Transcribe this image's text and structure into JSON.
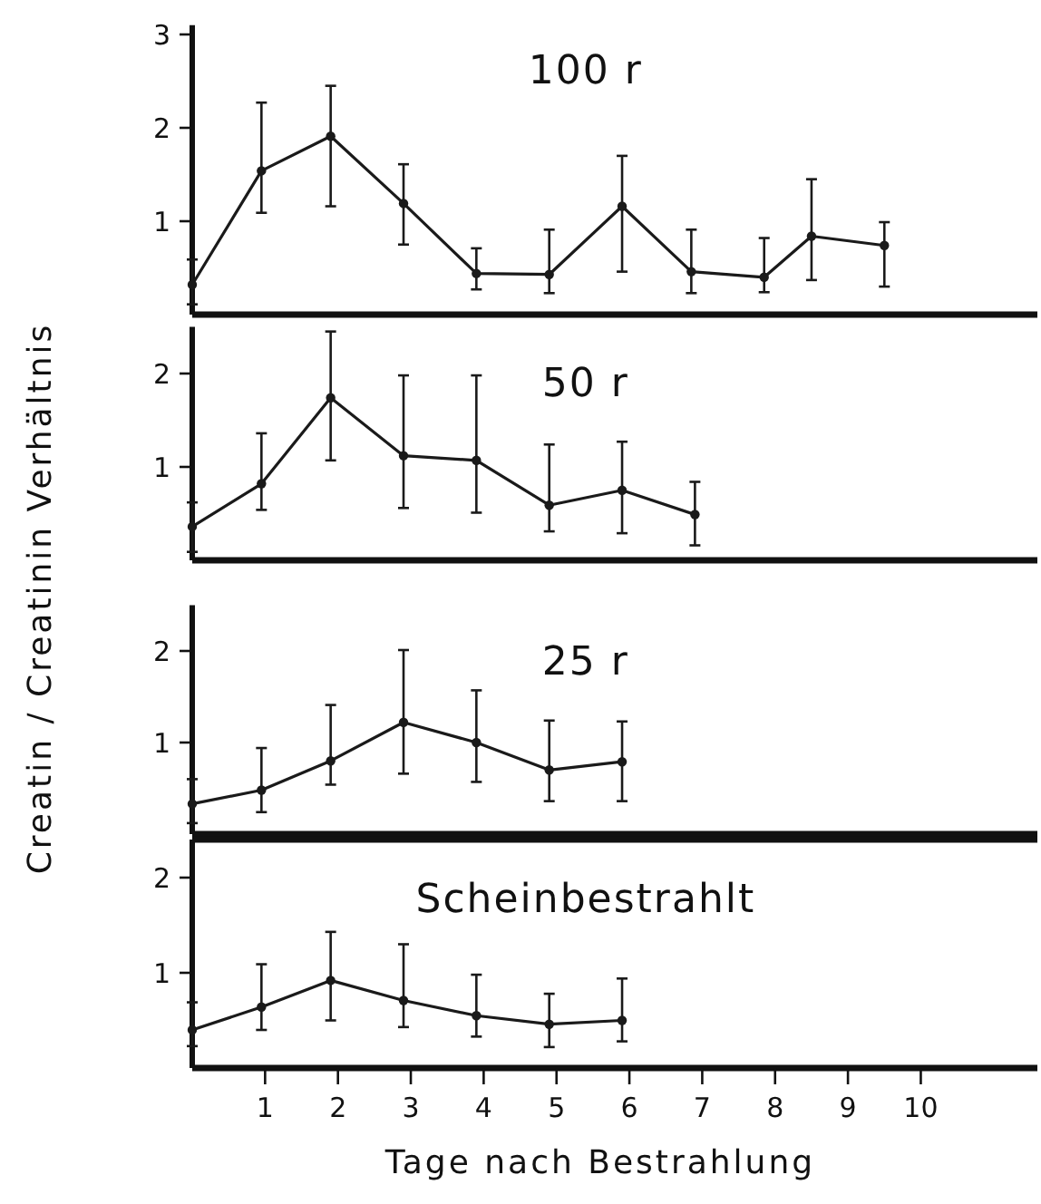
{
  "chart_data": [
    {
      "type": "line",
      "title": "100 r",
      "ylabel": "Creatin / Creatinin Verhältnis",
      "x": [
        0,
        0.95,
        1.9,
        2.9,
        3.9,
        4.9,
        5.9,
        6.85,
        7.85,
        8.5,
        9.5
      ],
      "xlim": [
        0,
        11.6
      ],
      "ylim": [
        0,
        3.1
      ],
      "yticks": [
        1,
        2,
        3
      ],
      "tick_labels": "y",
      "marker": "circle",
      "series": [
        {
          "color": "#1a1a1a",
          "values": [
            0.32,
            1.54,
            1.91,
            1.19,
            0.44,
            0.43,
            1.16,
            0.46,
            0.4,
            0.84,
            0.74
          ],
          "errors": [
            [
              0.11,
              0.59
            ],
            [
              1.09,
              2.27
            ],
            [
              1.16,
              2.45
            ],
            [
              0.75,
              1.61
            ],
            [
              0.27,
              0.71
            ],
            [
              0.23,
              0.91
            ],
            [
              0.46,
              1.7
            ],
            [
              0.23,
              0.91
            ],
            [
              0.24,
              0.82
            ],
            [
              0.37,
              1.45
            ],
            [
              0.3,
              0.99
            ]
          ]
        }
      ]
    },
    {
      "type": "line",
      "title": "50 r",
      "x": [
        0,
        0.95,
        1.9,
        2.9,
        3.9,
        4.9,
        5.9,
        6.9
      ],
      "xlim": [
        0,
        11.6
      ],
      "ylim": [
        0,
        2.5
      ],
      "yticks": [
        1,
        2
      ],
      "tick_labels": "y",
      "marker": "circle",
      "series": [
        {
          "color": "#1a1a1a",
          "values": [
            0.36,
            0.82,
            1.74,
            1.12,
            1.07,
            0.59,
            0.75,
            0.49
          ],
          "errors": [
            [
              0.09,
              0.62
            ],
            [
              0.54,
              1.36
            ],
            [
              1.07,
              2.45
            ],
            [
              0.56,
              1.98
            ],
            [
              0.51,
              1.98
            ],
            [
              0.31,
              1.24
            ],
            [
              0.29,
              1.27
            ],
            [
              0.16,
              0.84
            ]
          ]
        }
      ]
    },
    {
      "type": "line",
      "title": "25 r",
      "x": [
        0,
        0.95,
        1.9,
        2.9,
        3.9,
        4.9,
        5.9
      ],
      "xlim": [
        0,
        11.6
      ],
      "ylim": [
        0,
        2.5
      ],
      "yticks": [
        1,
        2
      ],
      "tick_labels": "y",
      "marker": "circle",
      "series": [
        {
          "color": "#1a1a1a",
          "values": [
            0.33,
            0.48,
            0.8,
            1.22,
            1.0,
            0.7,
            0.79
          ],
          "errors": [
            [
              0.12,
              0.6
            ],
            [
              0.24,
              0.94
            ],
            [
              0.54,
              1.41
            ],
            [
              0.66,
              2.01
            ],
            [
              0.57,
              1.57
            ],
            [
              0.36,
              1.24
            ],
            [
              0.36,
              1.23
            ]
          ]
        }
      ]
    },
    {
      "type": "line",
      "title": "Scheinbestrahlt",
      "xlabel": "Tage nach Bestrahlung",
      "x": [
        0,
        0.95,
        1.9,
        2.9,
        3.9,
        4.9,
        5.9
      ],
      "xlim": [
        0,
        11.6
      ],
      "xticks": [
        1,
        2,
        3,
        4,
        5,
        6,
        7,
        8,
        9,
        10
      ],
      "ylim": [
        0,
        2.4
      ],
      "yticks": [
        1,
        2
      ],
      "marker": "circle",
      "series": [
        {
          "color": "#1a1a1a",
          "values": [
            0.4,
            0.64,
            0.92,
            0.71,
            0.55,
            0.46,
            0.5
          ],
          "errors": [
            [
              0.23,
              0.69
            ],
            [
              0.4,
              1.09
            ],
            [
              0.5,
              1.43
            ],
            [
              0.43,
              1.3
            ],
            [
              0.33,
              0.98
            ],
            [
              0.22,
              0.78
            ],
            [
              0.28,
              0.94
            ]
          ]
        }
      ]
    }
  ]
}
